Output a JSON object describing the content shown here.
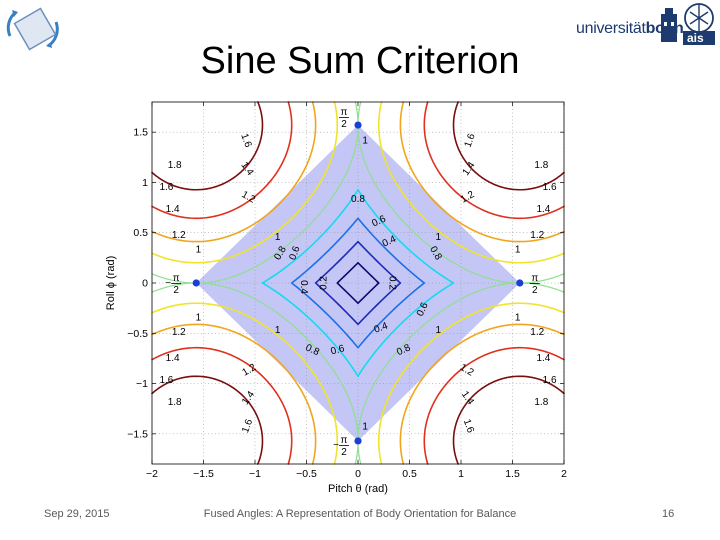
{
  "slide": {
    "title": "Sine Sum Criterion",
    "footer_date": "Sep 29, 2015",
    "footer_title": "Fused Angles: A Representation of Body Orientation for Balance",
    "page_number": "16"
  },
  "logo": {
    "university_prefix": "universität",
    "university_suffix": "bonn",
    "group_acronym": "ais",
    "brand_color": "#1d3b6f"
  },
  "chart_data": {
    "type": "contour",
    "title": "",
    "xlabel": "Pitch θ (rad)",
    "ylabel": "Roll ϕ (rad)",
    "xlim": [
      -2,
      2
    ],
    "ylim": [
      -1.8,
      1.8
    ],
    "x_ticks": [
      "−2",
      "−1.5",
      "−1",
      "−0.5",
      "0",
      "0.5",
      "1",
      "1.5",
      "2"
    ],
    "y_ticks": [
      "−1.5",
      "−1",
      "−0.5",
      "0",
      "0.5",
      "1",
      "1.5"
    ],
    "grid": "dotted",
    "function": "|sin θ| + |sin ϕ|",
    "feasible_region": "|θ| + |ϕ| ≤ π/2",
    "feasible_fill": "#c4c6f6",
    "levels": [
      {
        "value": 0.2,
        "color": "#0b0b6e",
        "label": "0.2"
      },
      {
        "value": 0.4,
        "color": "#1e2ab4",
        "label": "0.4"
      },
      {
        "value": 0.6,
        "color": "#1e6fe6",
        "label": "0.6"
      },
      {
        "value": 0.8,
        "color": "#16d9f0",
        "label": "0.8"
      },
      {
        "value": 1.0,
        "color": "#8ee08e",
        "label": "1"
      },
      {
        "value": 1.2,
        "color": "#f0e42a",
        "label": "1.2"
      },
      {
        "value": 1.4,
        "color": "#f2a51c",
        "label": "1.4"
      },
      {
        "value": 1.6,
        "color": "#e0311e",
        "label": "1.6"
      },
      {
        "value": 1.8,
        "color": "#7a0e0e",
        "label": "1.8"
      }
    ],
    "special_points": [
      {
        "x": 1.5708,
        "y": 0,
        "label_num": "π",
        "label_den": "2",
        "sign": ""
      },
      {
        "x": -1.5708,
        "y": 0,
        "label_num": "π",
        "label_den": "2",
        "sign": "−"
      },
      {
        "x": 0,
        "y": 1.5708,
        "label_num": "π",
        "label_den": "2",
        "sign": ""
      },
      {
        "x": 0,
        "y": -1.5708,
        "label_num": "π",
        "label_den": "2",
        "sign": "−"
      }
    ],
    "point_color": "#1a3fd6",
    "contour_labels": [
      {
        "x": 0.34,
        "y": 0,
        "t": "0.2",
        "r": 90
      },
      {
        "x": -0.34,
        "y": 0,
        "t": "0.2",
        "r": -90
      },
      {
        "x": -0.52,
        "y": -0.04,
        "t": "0.4",
        "r": 90
      },
      {
        "x": 0.3,
        "y": 0.42,
        "t": "0.4",
        "r": -25
      },
      {
        "x": 0.22,
        "y": -0.44,
        "t": "0.4",
        "r": -20
      },
      {
        "x": 0.2,
        "y": 0.62,
        "t": "0.6",
        "r": -25
      },
      {
        "x": -0.62,
        "y": 0.3,
        "t": "0.6",
        "r": -70
      },
      {
        "x": 0.62,
        "y": -0.26,
        "t": "0.6",
        "r": -65
      },
      {
        "x": -0.2,
        "y": -0.66,
        "t": "0.6",
        "r": -15
      },
      {
        "x": 0,
        "y": 0.84,
        "t": "0.8",
        "r": 0
      },
      {
        "x": -0.76,
        "y": 0.3,
        "t": "0.8",
        "r": -60
      },
      {
        "x": 0.76,
        "y": 0.3,
        "t": "0.8",
        "r": 60
      },
      {
        "x": 0.44,
        "y": -0.66,
        "t": "0.8",
        "r": -25
      },
      {
        "x": -0.44,
        "y": -0.66,
        "t": "0.8",
        "r": 25
      },
      {
        "x": 0.07,
        "y": 1.42,
        "t": "1",
        "r": 0
      },
      {
        "x": 0.07,
        "y": -1.42,
        "t": "1",
        "r": 0
      },
      {
        "x": 0.78,
        "y": 0.46,
        "t": "1",
        "r": 0
      },
      {
        "x": -0.78,
        "y": 0.46,
        "t": "1",
        "r": 0
      },
      {
        "x": 0.78,
        "y": -0.46,
        "t": "1",
        "r": 0
      },
      {
        "x": -0.78,
        "y": -0.46,
        "t": "1",
        "r": 0
      },
      {
        "x": 1.55,
        "y": 0.34,
        "t": "1",
        "r": 0
      },
      {
        "x": -1.55,
        "y": 0.34,
        "t": "1",
        "r": 0
      },
      {
        "x": 1.55,
        "y": -0.34,
        "t": "1",
        "r": 0
      },
      {
        "x": -1.55,
        "y": -0.34,
        "t": "1",
        "r": 0
      },
      {
        "x": 1.06,
        "y": 0.86,
        "t": "1.2",
        "r": -30
      },
      {
        "x": -1.06,
        "y": 0.86,
        "t": "1.2",
        "r": 30
      },
      {
        "x": 1.06,
        "y": -0.86,
        "t": "1.2",
        "r": 30
      },
      {
        "x": -1.06,
        "y": -0.86,
        "t": "1.2",
        "r": -30
      },
      {
        "x": 1.74,
        "y": 0.48,
        "t": "1.2",
        "r": 0
      },
      {
        "x": -1.74,
        "y": 0.48,
        "t": "1.2",
        "r": 0
      },
      {
        "x": 1.74,
        "y": -0.48,
        "t": "1.2",
        "r": 0
      },
      {
        "x": -1.74,
        "y": -0.48,
        "t": "1.2",
        "r": 0
      },
      {
        "x": 1.07,
        "y": 1.14,
        "t": "1.4",
        "r": -55
      },
      {
        "x": -1.07,
        "y": 1.14,
        "t": "1.4",
        "r": 55
      },
      {
        "x": 1.07,
        "y": -1.14,
        "t": "1.4",
        "r": 55
      },
      {
        "x": -1.07,
        "y": -1.14,
        "t": "1.4",
        "r": -55
      },
      {
        "x": 1.8,
        "y": 0.74,
        "t": "1.4",
        "r": 0
      },
      {
        "x": -1.8,
        "y": 0.74,
        "t": "1.4",
        "r": 0
      },
      {
        "x": 1.8,
        "y": -0.74,
        "t": "1.4",
        "r": 0
      },
      {
        "x": -1.8,
        "y": -0.74,
        "t": "1.4",
        "r": 0
      },
      {
        "x": 1.08,
        "y": 1.42,
        "t": "1.6",
        "r": -70
      },
      {
        "x": -1.08,
        "y": 1.42,
        "t": "1.6",
        "r": 70
      },
      {
        "x": 1.08,
        "y": -1.42,
        "t": "1.6",
        "r": 70
      },
      {
        "x": -1.08,
        "y": -1.42,
        "t": "1.6",
        "r": -70
      },
      {
        "x": 1.86,
        "y": 0.96,
        "t": "1.6",
        "r": 0
      },
      {
        "x": -1.86,
        "y": 0.96,
        "t": "1.6",
        "r": 0
      },
      {
        "x": 1.86,
        "y": -0.96,
        "t": "1.6",
        "r": 0
      },
      {
        "x": -1.86,
        "y": -0.96,
        "t": "1.6",
        "r": 0
      },
      {
        "x": 1.78,
        "y": 1.18,
        "t": "1.8",
        "r": 0
      },
      {
        "x": -1.78,
        "y": 1.18,
        "t": "1.8",
        "r": 0
      },
      {
        "x": 1.78,
        "y": -1.18,
        "t": "1.8",
        "r": 0
      },
      {
        "x": -1.78,
        "y": -1.18,
        "t": "1.8",
        "r": 0
      }
    ]
  }
}
